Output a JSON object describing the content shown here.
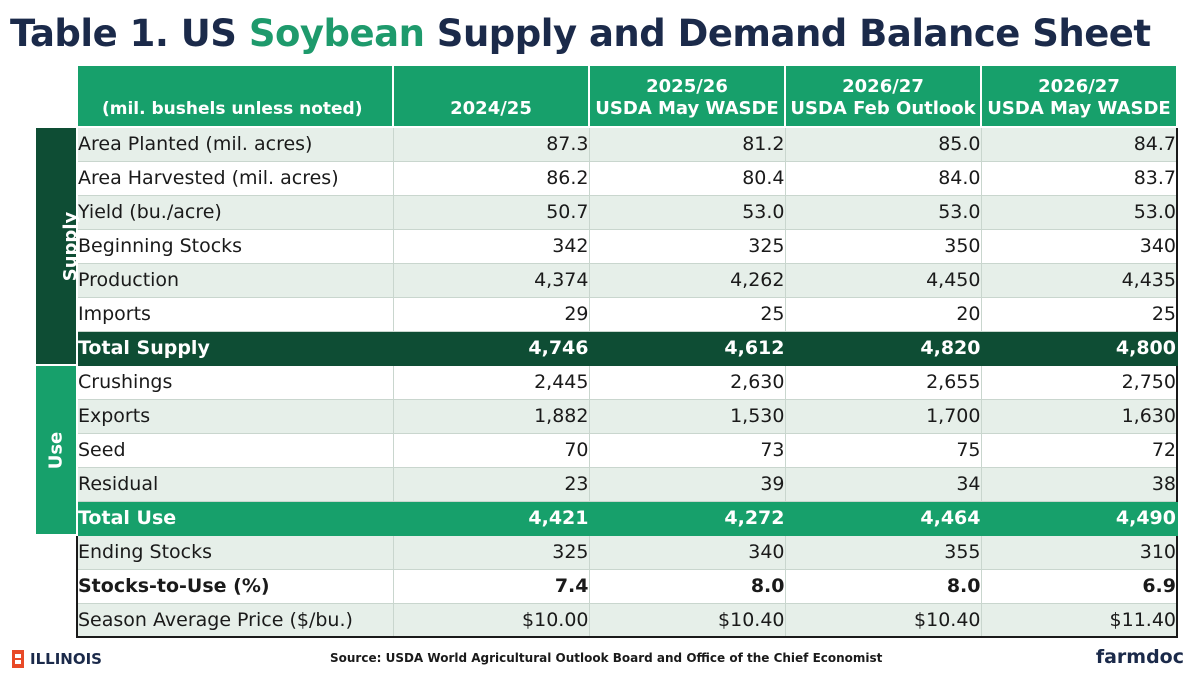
{
  "title": {
    "prefix": "Table 1. US ",
    "accent": "Soybean",
    "suffix": " Supply and Demand Balance Sheet"
  },
  "table": {
    "units_note": "(mil. bushels unless noted)",
    "columns": [
      {
        "line1": "",
        "line2": "2024/25"
      },
      {
        "line1": "2025/26",
        "line2": "USDA May WASDE"
      },
      {
        "line1": "2026/27",
        "line2": "USDA Feb Outlook"
      },
      {
        "line1": "2026/27",
        "line2": "USDA May WASDE"
      }
    ],
    "sections": {
      "supply": "Supply",
      "use": "Use"
    },
    "rows": [
      {
        "label": "Area Planted (mil. acres)",
        "values": [
          "87.3",
          "81.2",
          "85.0",
          "84.7"
        ]
      },
      {
        "label": "Area Harvested (mil. acres)",
        "values": [
          "86.2",
          "80.4",
          "84.0",
          "83.7"
        ]
      },
      {
        "label": "Yield (bu./acre)",
        "values": [
          "50.7",
          "53.0",
          "53.0",
          "53.0"
        ]
      },
      {
        "label": "Beginning Stocks",
        "values": [
          "342",
          "325",
          "350",
          "340"
        ]
      },
      {
        "label": "Production",
        "values": [
          "4,374",
          "4,262",
          "4,450",
          "4,435"
        ]
      },
      {
        "label": "Imports",
        "values": [
          "29",
          "25",
          "20",
          "25"
        ]
      },
      {
        "label": "Total Supply",
        "values": [
          "4,746",
          "4,612",
          "4,820",
          "4,800"
        ]
      },
      {
        "label": "Crushings",
        "values": [
          "2,445",
          "2,630",
          "2,655",
          "2,750"
        ]
      },
      {
        "label": "Exports",
        "values": [
          "1,882",
          "1,530",
          "1,700",
          "1,630"
        ]
      },
      {
        "label": "Seed",
        "values": [
          "70",
          "73",
          "75",
          "72"
        ]
      },
      {
        "label": "Residual",
        "values": [
          "23",
          "39",
          "34",
          "38"
        ]
      },
      {
        "label": "Total Use",
        "values": [
          "4,421",
          "4,272",
          "4,464",
          "4,490"
        ]
      },
      {
        "label": "Ending Stocks",
        "values": [
          "325",
          "340",
          "355",
          "310"
        ]
      },
      {
        "label": "Stocks-to-Use (%)",
        "values": [
          "7.4",
          "8.0",
          "8.0",
          "6.9"
        ]
      },
      {
        "label": "Season Average Price ($/bu.)",
        "values": [
          "$10.00",
          "$10.40",
          "$10.40",
          "$11.40"
        ]
      }
    ]
  },
  "footer": {
    "logo_text": "ILLINOIS",
    "logo_icon": "illinois-i-icon",
    "source": "Source: USDA World Agricultural Outlook Board and Office of the Chief Economist",
    "brand": "farmdoc"
  },
  "colors": {
    "title": "#1b2a4a",
    "accent": "#1e9a6c",
    "header_green": "#17a06b",
    "dark_green": "#0e4d34",
    "row_shade": "#e6efe9",
    "illinois_orange": "#e84a27"
  }
}
